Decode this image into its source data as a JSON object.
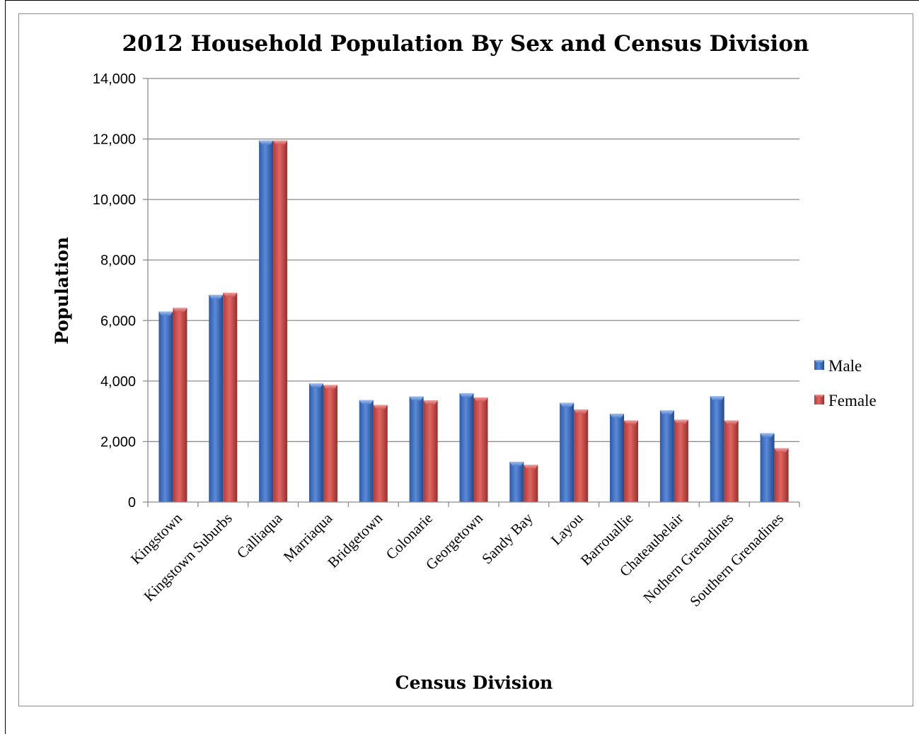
{
  "chart_data": {
    "type": "bar",
    "title": "2012 Household Population By Sex and Census Division",
    "xlabel": "Census Division",
    "ylabel": "Population",
    "ylim": [
      0,
      14000
    ],
    "yticks": [
      "0",
      "2,000",
      "4,000",
      "6,000",
      "8,000",
      "10,000",
      "12,000",
      "14,000"
    ],
    "grid": true,
    "legend_position": "right",
    "categories": [
      "Kingstown",
      "Kingstown Suburbs",
      "Calliaqua",
      "Marriaqua",
      "Bridgetown",
      "Colonarie",
      "Georgetown",
      "Sandy Bay",
      "Layou",
      "Barrouallie",
      "Chateaubelair",
      "Nothern Grenadines",
      "Southern Grenadines"
    ],
    "series": [
      {
        "name": "Male",
        "color": "#4472c4",
        "values": [
          6300,
          6850,
          11950,
          3920,
          3370,
          3490,
          3600,
          1330,
          3280,
          2920,
          3030,
          3500,
          2280
        ]
      },
      {
        "name": "Female",
        "color": "#c0504d",
        "values": [
          6420,
          6920,
          11950,
          3870,
          3210,
          3360,
          3460,
          1230,
          3060,
          2700,
          2720,
          2700,
          1780
        ]
      }
    ]
  }
}
